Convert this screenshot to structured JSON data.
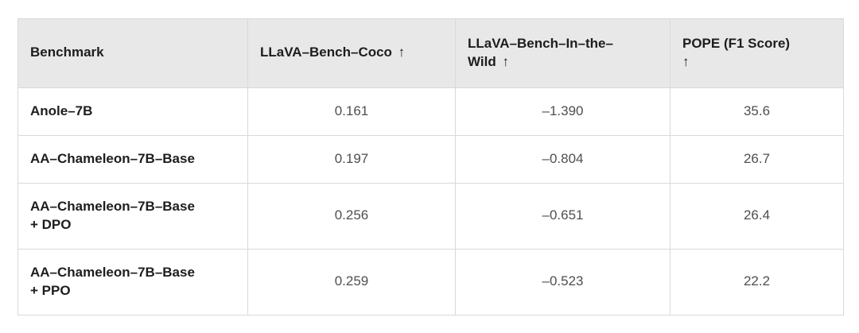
{
  "style": {
    "header_bg": "#e8e8e8",
    "border_color": "#d9d9d9",
    "label_text_color": "#1d1d1f",
    "value_text_color": "#4f4f52",
    "page_bg": "#ffffff"
  },
  "table": {
    "columns": [
      {
        "label": "Benchmark",
        "arrow": ""
      },
      {
        "label": "LLaVA–Bench–Coco",
        "arrow": " ↑"
      },
      {
        "label": "LLaVA–Bench–In–the–\nWild",
        "arrow": " ↑"
      },
      {
        "label": "POPE (F1 Score)",
        "arrow": "\n↑"
      }
    ],
    "rows": [
      {
        "benchmark": "Anole–7B",
        "llava_bench_coco": "0.161",
        "llava_bench_wild": "–1.390",
        "pope_f1": "35.6"
      },
      {
        "benchmark": "AA–Chameleon–7B–Base",
        "llava_bench_coco": "0.197",
        "llava_bench_wild": "–0.804",
        "pope_f1": "26.7"
      },
      {
        "benchmark": "AA–Chameleon–7B–Base\n+ DPO",
        "llava_bench_coco": "0.256",
        "llava_bench_wild": "–0.651",
        "pope_f1": "26.4"
      },
      {
        "benchmark": "AA–Chameleon–7B–Base\n+ PPO",
        "llava_bench_coco": "0.259",
        "llava_bench_wild": "–0.523",
        "pope_f1": "22.2"
      }
    ]
  },
  "chart_data": {
    "type": "table",
    "title": "",
    "columns": [
      "Benchmark",
      "LLaVA-Bench-Coco ↑",
      "LLaVA-Bench-In-the-Wild ↑",
      "POPE (F1 Score) ↑"
    ],
    "rows": [
      [
        "Anole-7B",
        0.161,
        -1.39,
        35.6
      ],
      [
        "AA-Chameleon-7B-Base",
        0.197,
        -0.804,
        26.7
      ],
      [
        "AA-Chameleon-7B-Base + DPO",
        0.256,
        -0.651,
        26.4
      ],
      [
        "AA-Chameleon-7B-Base + PPO",
        0.259,
        -0.523,
        22.2
      ]
    ]
  }
}
